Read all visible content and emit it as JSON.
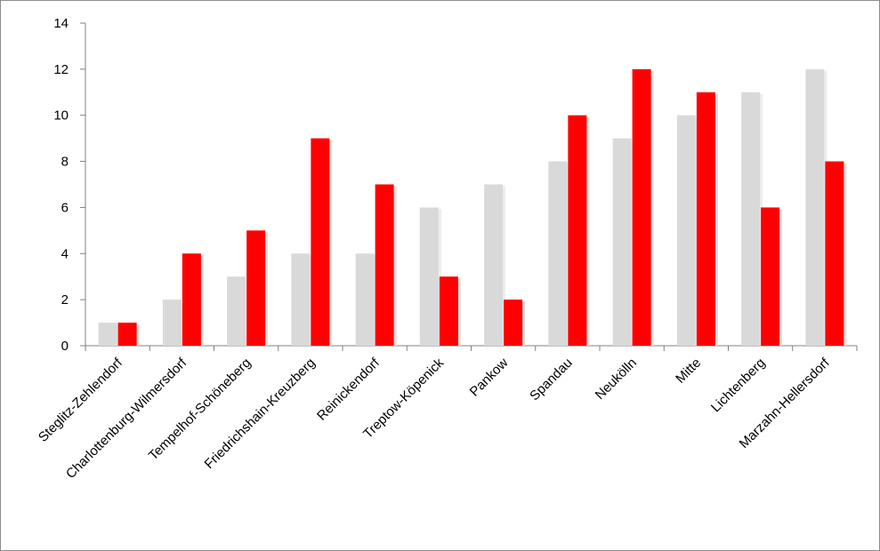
{
  "chart_data": {
    "type": "bar",
    "categories": [
      "Steglitz-Zehlendorf",
      "Charlottenburg-Wilmersdorf",
      "Tempelhof-Schöneberg",
      "Friedrichshain-Kreuzberg",
      "Reinickendorf",
      "Treptow-Köpenick",
      "Pankow",
      "Spandau",
      "Neukölln",
      "Mitte",
      "Lichtenberg",
      "Marzahn-Hellersdorf"
    ],
    "series": [
      {
        "values": [
          1,
          2,
          3,
          4,
          4,
          6,
          7,
          8,
          9,
          10,
          11,
          12
        ],
        "color": "#d9d9d9"
      },
      {
        "values": [
          1,
          4,
          5,
          9,
          7,
          3,
          2,
          10,
          12,
          11,
          6,
          8
        ],
        "color": "#ff0000"
      }
    ],
    "title": "",
    "xlabel": "",
    "ylabel": "",
    "ylim": [
      0,
      14
    ],
    "yticks": [
      0,
      2,
      4,
      6,
      8,
      10,
      12,
      14
    ],
    "ytick_labels": [
      "0",
      "2",
      "4",
      "6",
      "8",
      "10",
      "12",
      "14"
    ],
    "grid": false,
    "legend": "none"
  }
}
